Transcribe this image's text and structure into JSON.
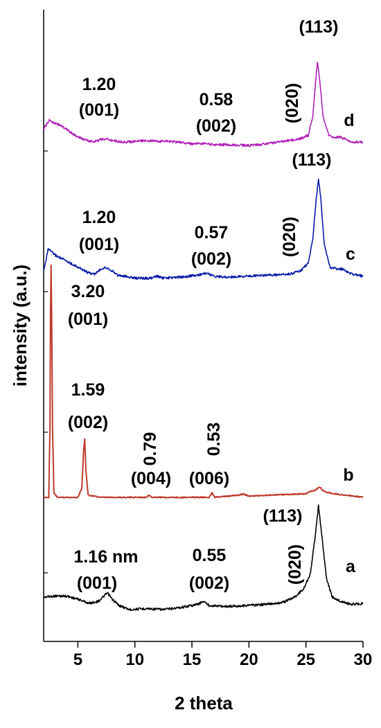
{
  "chart_data": {
    "type": "line",
    "title": "",
    "xlabel": "2 theta",
    "ylabel": "intensity (a.u.)",
    "xlim": [
      2,
      30
    ],
    "x_ticks": [
      5,
      10,
      15,
      20,
      25,
      30
    ],
    "x_tick_labels": [
      "5",
      "10",
      "15",
      "20",
      "25",
      "30"
    ],
    "grid": false,
    "series": [
      {
        "name": "a",
        "color": "#000000",
        "points": [
          [
            2.0,
            0.12
          ],
          [
            3.0,
            0.13
          ],
          [
            4.0,
            0.13
          ],
          [
            5.0,
            0.1
          ],
          [
            6.0,
            0.06
          ],
          [
            6.8,
            0.08
          ],
          [
            7.2,
            0.12
          ],
          [
            7.6,
            0.16
          ],
          [
            8.0,
            0.1
          ],
          [
            8.6,
            0.04
          ],
          [
            9.5,
            0.0
          ],
          [
            11.0,
            0.01
          ],
          [
            12.5,
            0.0
          ],
          [
            14.0,
            0.02
          ],
          [
            15.5,
            0.05
          ],
          [
            16.0,
            0.08
          ],
          [
            16.5,
            0.04
          ],
          [
            18.0,
            0.03
          ],
          [
            20.0,
            0.04
          ],
          [
            21.5,
            0.05
          ],
          [
            23.0,
            0.07
          ],
          [
            24.0,
            0.12
          ],
          [
            24.8,
            0.2
          ],
          [
            25.4,
            0.35
          ],
          [
            25.8,
            0.7
          ],
          [
            26.1,
            1.0
          ],
          [
            26.4,
            0.7
          ],
          [
            26.8,
            0.3
          ],
          [
            27.3,
            0.12
          ],
          [
            28.0,
            0.08
          ],
          [
            29.0,
            0.05
          ],
          [
            30.0,
            0.06
          ]
        ],
        "peak_labels": [
          {
            "d": "1.16 nm",
            "hkl": "(001)"
          },
          {
            "d": "0.55",
            "hkl": "(002)"
          },
          {
            "hkl": "(020)"
          },
          {
            "hkl": "(113)"
          }
        ]
      },
      {
        "name": "b",
        "color": "#c0392b",
        "points": [
          [
            2.0,
            0.0
          ],
          [
            2.45,
            0.0
          ],
          [
            2.55,
            0.3
          ],
          [
            2.6,
            0.8
          ],
          [
            2.65,
            1.0
          ],
          [
            2.7,
            0.8
          ],
          [
            2.78,
            0.3
          ],
          [
            2.9,
            0.02
          ],
          [
            3.2,
            0.0
          ],
          [
            5.0,
            0.0
          ],
          [
            5.35,
            0.04
          ],
          [
            5.5,
            0.2
          ],
          [
            5.6,
            0.25
          ],
          [
            5.7,
            0.12
          ],
          [
            5.9,
            0.01
          ],
          [
            7.0,
            0.0
          ],
          [
            11.0,
            0.0
          ],
          [
            11.2,
            0.01
          ],
          [
            11.5,
            0.0
          ],
          [
            16.5,
            0.0
          ],
          [
            16.75,
            0.02
          ],
          [
            17.0,
            0.0
          ],
          [
            19.2,
            0.01
          ],
          [
            19.5,
            0.015
          ],
          [
            20.0,
            0.005
          ],
          [
            22.0,
            0.01
          ],
          [
            25.0,
            0.015
          ],
          [
            25.3,
            0.025
          ],
          [
            25.8,
            0.03
          ],
          [
            26.2,
            0.045
          ],
          [
            26.6,
            0.025
          ],
          [
            27.5,
            0.015
          ],
          [
            30.0,
            0.0
          ]
        ],
        "peak_labels": [
          {
            "d": "3.20",
            "hkl": "(001)"
          },
          {
            "d": "1.59",
            "hkl": "(002)"
          },
          {
            "d": "0.79",
            "hkl": "(004)"
          },
          {
            "d": "0.53",
            "hkl": "(006)"
          }
        ]
      },
      {
        "name": "c",
        "color": "#0a1aa8",
        "points": [
          [
            2.0,
            0.08
          ],
          [
            2.4,
            0.3
          ],
          [
            3.0,
            0.24
          ],
          [
            4.0,
            0.18
          ],
          [
            5.0,
            0.12
          ],
          [
            6.0,
            0.06
          ],
          [
            6.5,
            0.05
          ],
          [
            7.0,
            0.1
          ],
          [
            7.4,
            0.12
          ],
          [
            7.8,
            0.1
          ],
          [
            8.5,
            0.04
          ],
          [
            10.0,
            0.01
          ],
          [
            11.5,
            0.01
          ],
          [
            12.0,
            0.03
          ],
          [
            12.4,
            0.01
          ],
          [
            14.0,
            0.02
          ],
          [
            15.5,
            0.04
          ],
          [
            16.2,
            0.06
          ],
          [
            17.0,
            0.03
          ],
          [
            18.0,
            0.02
          ],
          [
            20.0,
            0.03
          ],
          [
            22.0,
            0.04
          ],
          [
            23.5,
            0.05
          ],
          [
            24.5,
            0.08
          ],
          [
            25.2,
            0.16
          ],
          [
            25.6,
            0.4
          ],
          [
            25.9,
            0.8
          ],
          [
            26.1,
            1.0
          ],
          [
            26.3,
            0.8
          ],
          [
            26.6,
            0.35
          ],
          [
            27.1,
            0.12
          ],
          [
            27.7,
            0.1
          ],
          [
            28.2,
            0.1
          ],
          [
            29.0,
            0.05
          ],
          [
            30.0,
            0.03
          ]
        ],
        "peak_labels": [
          {
            "d": "1.20",
            "hkl": "(001)"
          },
          {
            "d": "0.57",
            "hkl": "(002)"
          },
          {
            "hkl": "(020)"
          },
          {
            "hkl": "(113)"
          }
        ]
      },
      {
        "name": "d",
        "color": "#b020b8",
        "points": [
          [
            2.0,
            0.2
          ],
          [
            2.5,
            0.3
          ],
          [
            3.5,
            0.24
          ],
          [
            5.0,
            0.1
          ],
          [
            6.0,
            0.05
          ],
          [
            6.5,
            0.05
          ],
          [
            7.0,
            0.07
          ],
          [
            7.5,
            0.08
          ],
          [
            8.0,
            0.06
          ],
          [
            9.0,
            0.04
          ],
          [
            10.0,
            0.05
          ],
          [
            11.0,
            0.06
          ],
          [
            12.0,
            0.05
          ],
          [
            13.0,
            0.05
          ],
          [
            14.0,
            0.04
          ],
          [
            15.0,
            0.02
          ],
          [
            16.0,
            0.02
          ],
          [
            17.0,
            0.01
          ],
          [
            18.0,
            0.01
          ],
          [
            20.0,
            0.0
          ],
          [
            21.0,
            0.01
          ],
          [
            22.0,
            0.03
          ],
          [
            23.5,
            0.06
          ],
          [
            24.5,
            0.08
          ],
          [
            25.2,
            0.12
          ],
          [
            25.6,
            0.35
          ],
          [
            25.8,
            0.7
          ],
          [
            26.0,
            1.0
          ],
          [
            26.2,
            0.8
          ],
          [
            26.5,
            0.35
          ],
          [
            27.0,
            0.12
          ],
          [
            27.5,
            0.1
          ],
          [
            28.0,
            0.1
          ],
          [
            29.0,
            0.04
          ],
          [
            30.0,
            0.04
          ]
        ],
        "peak_labels": [
          {
            "d": "1.20",
            "hkl": "(001)"
          },
          {
            "d": "0.58",
            "hkl": "(002)"
          },
          {
            "hkl": "(020)"
          },
          {
            "hkl": "(113)"
          }
        ]
      }
    ]
  }
}
